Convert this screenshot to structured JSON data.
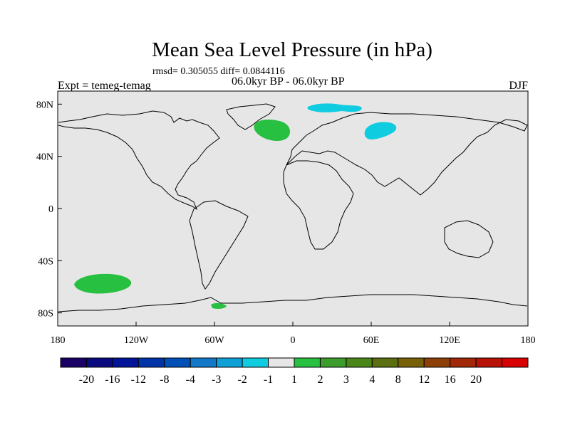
{
  "title": "Mean Sea Level Pressure (in hPa)",
  "stats": "rmsd= 0.305055 diff= 0.0844116",
  "experiment": "Expt = temeg-temag",
  "period": "06.0kyr BP - 06.0kyr BP",
  "season": "DJF",
  "map": {
    "projection": "cylindrical-equidistant",
    "lon_range": [
      -180,
      180
    ],
    "lat_range": [
      -90,
      90
    ],
    "background_color": "#e6e6e6",
    "x_ticks": [
      {
        "value": -180,
        "label": "180"
      },
      {
        "value": -120,
        "label": "120W"
      },
      {
        "value": -60,
        "label": "60W"
      },
      {
        "value": 0,
        "label": "0"
      },
      {
        "value": 60,
        "label": "60E"
      },
      {
        "value": 120,
        "label": "120E"
      },
      {
        "value": 180,
        "label": "180"
      }
    ],
    "y_ticks": [
      {
        "value": 80,
        "label": "80N"
      },
      {
        "value": 40,
        "label": "40N"
      },
      {
        "value": 0,
        "label": "0"
      },
      {
        "value": -40,
        "label": "40S"
      },
      {
        "value": -80,
        "label": "80S"
      }
    ]
  },
  "anomaly_regions": [
    {
      "name": "North Atlantic positive",
      "sign": "positive",
      "color": "#27c040"
    },
    {
      "name": "Western Siberia negative",
      "sign": "negative",
      "color": "#10cce0"
    },
    {
      "name": "Barents/Kara Sea negative",
      "sign": "negative",
      "color": "#10cce0"
    },
    {
      "name": "South Pacific positive",
      "sign": "positive",
      "color": "#27c040"
    },
    {
      "name": "Antarctic Peninsula positive",
      "sign": "positive",
      "color": "#27c040"
    }
  ],
  "colorbar": {
    "colors": [
      "#1a0066",
      "#0a0a80",
      "#00149a",
      "#0032a8",
      "#0050b8",
      "#1478c8",
      "#10a0d8",
      "#10cce0",
      "#e6e6e6",
      "#27c040",
      "#3c9c2c",
      "#4a8618",
      "#5a7010",
      "#786008",
      "#8c4008",
      "#a02808",
      "#b81208",
      "#d80000"
    ],
    "labels": [
      "-20",
      "-16",
      "-12",
      "-8",
      "-4",
      "-3",
      "-2",
      "-1",
      "1",
      "2",
      "3",
      "4",
      "8",
      "12",
      "16",
      "20"
    ]
  }
}
